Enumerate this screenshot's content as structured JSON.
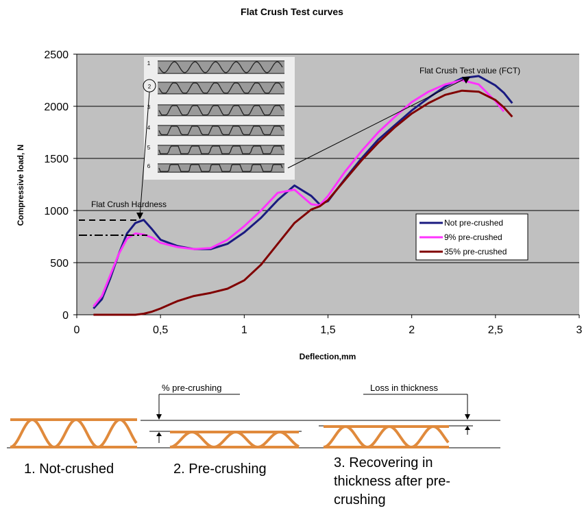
{
  "chart_data": {
    "type": "line",
    "title": "Flat Crush Test curves",
    "x_label": "Deflection,mm",
    "y_label": "Compressive load, N",
    "x": [
      0.1,
      0.15,
      0.2,
      0.25,
      0.3,
      0.35,
      0.4,
      0.45,
      0.5,
      0.6,
      0.7,
      0.8,
      0.9,
      1.0,
      1.1,
      1.2,
      1.3,
      1.4,
      1.45,
      1.5,
      1.6,
      1.7,
      1.8,
      1.9,
      2.0,
      2.1,
      2.2,
      2.3,
      2.4,
      2.5,
      2.55,
      2.6
    ],
    "series": [
      {
        "name": "Not pre-crushed",
        "color": "#1a1a80",
        "values": [
          60,
          150,
          350,
          580,
          780,
          880,
          910,
          820,
          720,
          660,
          630,
          630,
          680,
          790,
          930,
          1100,
          1240,
          1140,
          1060,
          1090,
          1300,
          1500,
          1680,
          1820,
          1960,
          2080,
          2190,
          2270,
          2290,
          2200,
          2130,
          2030
        ]
      },
      {
        "name": "9% pre-crushed",
        "color": "#ff33ff",
        "values": [
          80,
          180,
          380,
          580,
          730,
          780,
          770,
          740,
          690,
          650,
          630,
          640,
          720,
          850,
          1000,
          1170,
          1200,
          1060,
          1050,
          1140,
          1370,
          1570,
          1750,
          1900,
          2040,
          2140,
          2210,
          2250,
          2210,
          2050,
          1950,
          null
        ]
      },
      {
        "name": "35% pre-crushed",
        "color": "#800000",
        "values": [
          0,
          0,
          0,
          0,
          0,
          0,
          10,
          30,
          60,
          130,
          180,
          210,
          250,
          330,
          480,
          680,
          880,
          1010,
          1040,
          1100,
          1290,
          1480,
          1650,
          1800,
          1930,
          2030,
          2110,
          2150,
          2140,
          2060,
          1990,
          1900
        ]
      }
    ],
    "xlim": [
      0,
      3
    ],
    "xticks": [
      0,
      {
        "value": 0.5,
        "label": "0,5"
      },
      1,
      {
        "value": 1.5,
        "label": "1,5"
      },
      2,
      {
        "value": 2.5,
        "label": "2,5"
      },
      3
    ],
    "ylim": [
      0,
      2500
    ],
    "yticks": [
      0,
      500,
      1000,
      1500,
      2000,
      2500
    ],
    "grid": true,
    "legend_position": "right",
    "annotations": [
      "Flat Crush Hardness",
      "Flat Crush Test value (FCT)"
    ],
    "inset_labels": [
      "1",
      "2",
      "3",
      "4",
      "5",
      "6"
    ]
  },
  "diagram": {
    "dimensions": [
      "% pre-crushing",
      "Loss in thickness"
    ],
    "stages": [
      "1. Not-crushed",
      "2. Pre-crushing",
      "3. Recovering in thickness after pre-crushing"
    ]
  }
}
